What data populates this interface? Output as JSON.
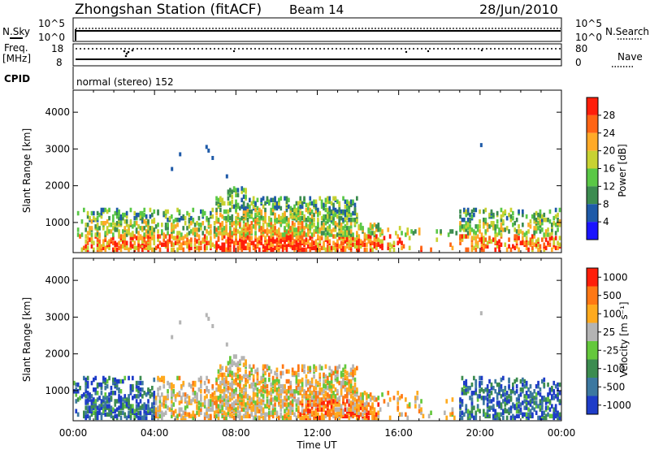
{
  "header": {
    "station": "Zhongshan Station (fitACF)",
    "beam": "Beam 14",
    "date": "28/Jun/2010"
  },
  "noise_panel": {
    "left_label": "N.Sky",
    "right_label": "N.Search",
    "left_ticks": [
      "10^5",
      "10^0"
    ],
    "right_ticks": [
      "10^5",
      "10^0"
    ]
  },
  "freq_panel": {
    "left_label_1": "Freq.",
    "left_label_2": "[MHz]",
    "right_label": "Nave",
    "left_ticks": [
      "18",
      "8"
    ],
    "right_ticks": [
      "80",
      "0"
    ]
  },
  "cpid_panel": {
    "label": "CPID",
    "text": "normal (stereo) 152"
  },
  "chart_data": [
    {
      "type": "heatmap",
      "name": "power",
      "ylabel": "Slant Range [km]",
      "xlabel": "",
      "ylim": [
        180,
        4600
      ],
      "yticks": [
        "1000",
        "2000",
        "3000",
        "4000"
      ],
      "colorbar_label": "Power [dB]",
      "colorbar_ticks": [
        "4",
        "8",
        "12",
        "16",
        "20",
        "24",
        "28"
      ],
      "colors": [
        "#1a14ff",
        "#1e5aa8",
        "#3c8c50",
        "#5ac846",
        "#c8d232",
        "#ffaa28",
        "#ff6414",
        "#ff1e0a"
      ]
    },
    {
      "type": "heatmap",
      "name": "velocity",
      "ylabel": "Slant Range [km]",
      "xlabel": "Time UT",
      "ylim": [
        180,
        4600
      ],
      "yticks": [
        "1000",
        "2000",
        "3000",
        "4000"
      ],
      "colorbar_label": "Velocity [m s⁻¹]",
      "colorbar_ticks": [
        "1000",
        "500",
        "100",
        "25",
        "-25",
        "-100",
        "-500",
        "-1000"
      ],
      "colors": [
        "#1e3cc8",
        "#3c78a0",
        "#3c8c50",
        "#64c83c",
        "#b4b4b4",
        "#ffaa1e",
        "#ff7814",
        "#ff1e0a"
      ],
      "xticks": [
        "00:00",
        "04:00",
        "08:00",
        "12:00",
        "16:00",
        "20:00",
        "00:00"
      ]
    }
  ]
}
